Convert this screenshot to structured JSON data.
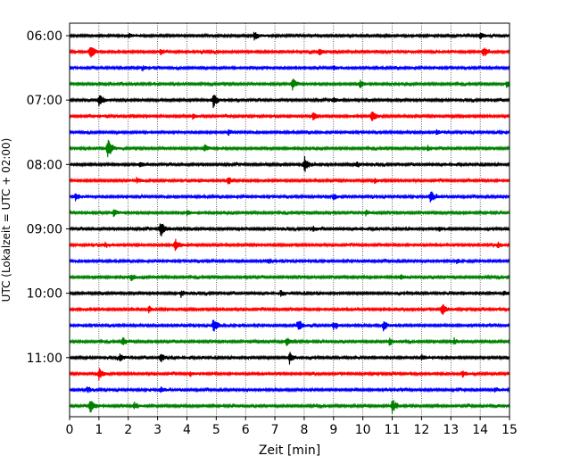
{
  "chart_data": {
    "type": "line",
    "title": "",
    "xlabel": "Zeit  [min]",
    "ylabel": "UTC (Lokalzeit = UTC + 02:00)",
    "xlim": [
      0,
      15
    ],
    "x_ticks": [
      0,
      1,
      2,
      3,
      4,
      5,
      6,
      7,
      8,
      9,
      10,
      11,
      12,
      13,
      14,
      15
    ],
    "x_tick_labels": [
      "0",
      "1",
      "2",
      "3",
      "4",
      "5",
      "6",
      "7",
      "8",
      "9",
      "10",
      "11",
      "12",
      "13",
      "14",
      "15"
    ],
    "y_tick_labels": [
      "06:00",
      "07:00",
      "08:00",
      "09:00",
      "10:00",
      "11:00"
    ],
    "y_tick_trace_index": [
      0,
      4,
      8,
      12,
      16,
      20
    ],
    "grid": "vertical dotted lines at each minute",
    "legend": "none",
    "trace_colors": [
      "#000000",
      "#ff0000",
      "#0000ff",
      "#008000"
    ],
    "traces": [
      {
        "start": "06:00",
        "events": [
          [
            6.3,
            0.6
          ],
          [
            2.0,
            0.35
          ],
          [
            14.0,
            0.4
          ]
        ]
      },
      {
        "start": "06:15",
        "events": [
          [
            0.7,
            1.0
          ],
          [
            3.1,
            0.4
          ],
          [
            8.5,
            0.5
          ],
          [
            14.1,
            0.7
          ]
        ]
      },
      {
        "start": "06:30",
        "events": [
          [
            2.5,
            0.3
          ],
          [
            9.0,
            0.3
          ]
        ]
      },
      {
        "start": "06:45",
        "events": [
          [
            7.6,
            0.8
          ],
          [
            9.9,
            0.5
          ],
          [
            14.9,
            0.4
          ]
        ]
      },
      {
        "start": "07:00",
        "events": [
          [
            1.0,
            0.9
          ],
          [
            4.9,
            1.0
          ],
          [
            9.0,
            0.35
          ]
        ]
      },
      {
        "start": "07:15",
        "events": [
          [
            10.3,
            0.9
          ],
          [
            8.3,
            0.5
          ],
          [
            4.2,
            0.35
          ]
        ]
      },
      {
        "start": "07:30",
        "events": [
          [
            5.4,
            0.3
          ],
          [
            12.5,
            0.3
          ]
        ]
      },
      {
        "start": "07:45",
        "events": [
          [
            1.3,
            1.4
          ],
          [
            4.6,
            0.5
          ],
          [
            12.2,
            0.35
          ]
        ]
      },
      {
        "start": "08:00",
        "events": [
          [
            8.0,
            1.1
          ],
          [
            2.4,
            0.35
          ],
          [
            9.8,
            0.35
          ]
        ]
      },
      {
        "start": "08:15",
        "events": [
          [
            5.4,
            0.5
          ],
          [
            2.3,
            0.3
          ],
          [
            10.4,
            0.3
          ]
        ]
      },
      {
        "start": "08:30",
        "events": [
          [
            12.3,
            0.9
          ],
          [
            0.2,
            0.5
          ],
          [
            9.0,
            0.4
          ]
        ]
      },
      {
        "start": "08:45",
        "events": [
          [
            1.5,
            0.5
          ],
          [
            4.0,
            0.35
          ],
          [
            10.1,
            0.3
          ]
        ]
      },
      {
        "start": "09:00",
        "events": [
          [
            3.1,
            1.1
          ],
          [
            8.3,
            0.4
          ],
          [
            12.6,
            0.3
          ]
        ]
      },
      {
        "start": "09:15",
        "events": [
          [
            3.6,
            0.8
          ],
          [
            1.2,
            0.35
          ],
          [
            14.6,
            0.35
          ]
        ]
      },
      {
        "start": "09:30",
        "events": [
          [
            6.8,
            0.3
          ],
          [
            13.2,
            0.3
          ]
        ]
      },
      {
        "start": "09:45",
        "events": [
          [
            2.1,
            0.4
          ],
          [
            11.3,
            0.3
          ]
        ]
      },
      {
        "start": "10:00",
        "events": [
          [
            3.8,
            0.45
          ],
          [
            7.2,
            0.35
          ],
          [
            14.8,
            0.3
          ]
        ]
      },
      {
        "start": "10:15",
        "events": [
          [
            12.7,
            0.9
          ],
          [
            2.7,
            0.4
          ]
        ]
      },
      {
        "start": "10:30",
        "events": [
          [
            4.9,
            1.0
          ],
          [
            7.8,
            0.9
          ],
          [
            10.7,
            0.7
          ],
          [
            9.0,
            0.5
          ]
        ]
      },
      {
        "start": "10:45",
        "events": [
          [
            1.8,
            0.5
          ],
          [
            7.4,
            0.6
          ],
          [
            10.9,
            0.45
          ],
          [
            13.1,
            0.35
          ]
        ]
      },
      {
        "start": "11:00",
        "events": [
          [
            7.5,
            0.8
          ],
          [
            3.1,
            0.6
          ],
          [
            1.7,
            0.5
          ],
          [
            12.0,
            0.35
          ]
        ]
      },
      {
        "start": "11:15",
        "events": [
          [
            1.0,
            0.8
          ],
          [
            4.1,
            0.35
          ],
          [
            13.4,
            0.35
          ]
        ]
      },
      {
        "start": "11:30",
        "events": [
          [
            0.6,
            0.4
          ],
          [
            3.1,
            0.45
          ],
          [
            14.5,
            0.35
          ]
        ]
      },
      {
        "start": "11:45",
        "events": [
          [
            0.7,
            1.1
          ],
          [
            11.0,
            1.0
          ],
          [
            2.2,
            0.5
          ]
        ]
      }
    ]
  }
}
